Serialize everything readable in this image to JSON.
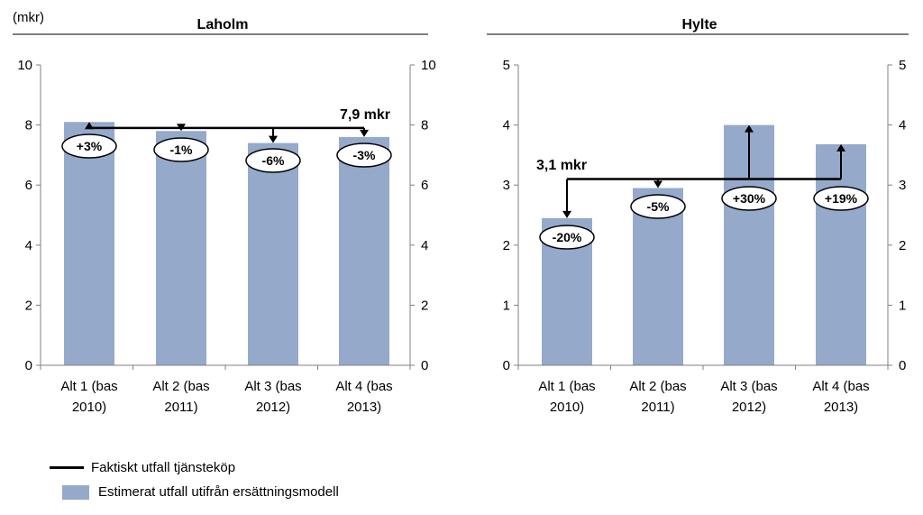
{
  "unit_label": "(mkr)",
  "chart_data": [
    {
      "type": "bar",
      "title": "Laholm",
      "categories": [
        [
          "Alt 1 (bas",
          "2010)"
        ],
        [
          "Alt 2 (bas",
          "2011)"
        ],
        [
          "Alt 3 (bas",
          "2012)"
        ],
        [
          "Alt 4 (bas",
          "2013)"
        ]
      ],
      "values": [
        8.1,
        7.8,
        7.4,
        7.6
      ],
      "reference_value": 7.9,
      "reference_label": "7,9 mkr",
      "diff_labels": [
        "+3%",
        "-1%",
        "-6%",
        "-3%"
      ],
      "ylim": [
        0,
        10
      ],
      "yticks": [
        0,
        2,
        4,
        6,
        8,
        10
      ],
      "grid": false,
      "bar_color": "#95a9cb"
    },
    {
      "type": "bar",
      "title": "Hylte",
      "categories": [
        [
          "Alt 1 (bas",
          "2010)"
        ],
        [
          "Alt 2 (bas",
          "2011)"
        ],
        [
          "Alt 3 (bas",
          "2012)"
        ],
        [
          "Alt 4 (bas",
          "2013)"
        ]
      ],
      "values": [
        2.45,
        2.95,
        4.0,
        3.68
      ],
      "reference_value": 3.1,
      "reference_label": "3,1 mkr",
      "diff_labels": [
        "-20%",
        "-5%",
        "+30%",
        "+19%"
      ],
      "ylim": [
        0,
        5
      ],
      "yticks": [
        0,
        1,
        2,
        3,
        4,
        5
      ],
      "grid": false,
      "bar_color": "#95a9cb"
    }
  ],
  "legend": {
    "line_label": "Faktiskt utfall tjänsteköp",
    "bar_label": "Estimerat utfall utifrån ersättningsmodell"
  }
}
